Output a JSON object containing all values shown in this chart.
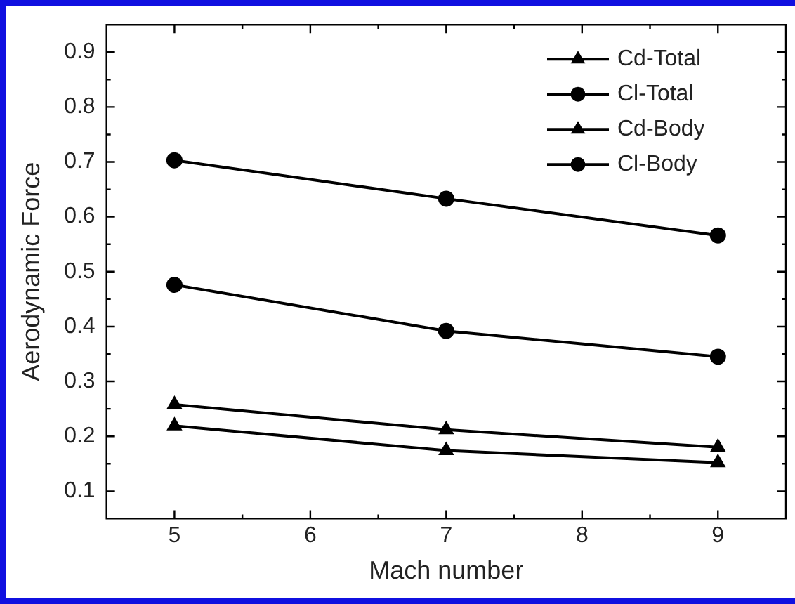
{
  "chart_data": {
    "type": "line",
    "xlabel": "Mach number",
    "ylabel": "Aerodynamic Force",
    "x": [
      5,
      7,
      9
    ],
    "series": [
      {
        "name": "Cd-Total",
        "color": "#000000",
        "marker": "triangle",
        "values": [
          0.258,
          0.212,
          0.18
        ]
      },
      {
        "name": "Cl-Total",
        "color": "#000000",
        "marker": "circle",
        "values": [
          0.703,
          0.633,
          0.566
        ]
      },
      {
        "name": "Cd-Body",
        "color": "#000000",
        "marker": "triangle",
        "values": [
          0.219,
          0.174,
          0.152
        ]
      },
      {
        "name": "Cl-Body",
        "color": "#000000",
        "marker": "circle",
        "values": [
          0.476,
          0.392,
          0.345
        ]
      }
    ],
    "xlim": [
      4.5,
      9.5
    ],
    "xticks": [
      5,
      6,
      7,
      8,
      9
    ],
    "ylim": [
      0.05,
      0.95
    ],
    "yticks": [
      0.1,
      0.2,
      0.3,
      0.4,
      0.5,
      0.6,
      0.7,
      0.8,
      0.9
    ],
    "grid": false,
    "legend": "top right",
    "line_style": "solid"
  }
}
